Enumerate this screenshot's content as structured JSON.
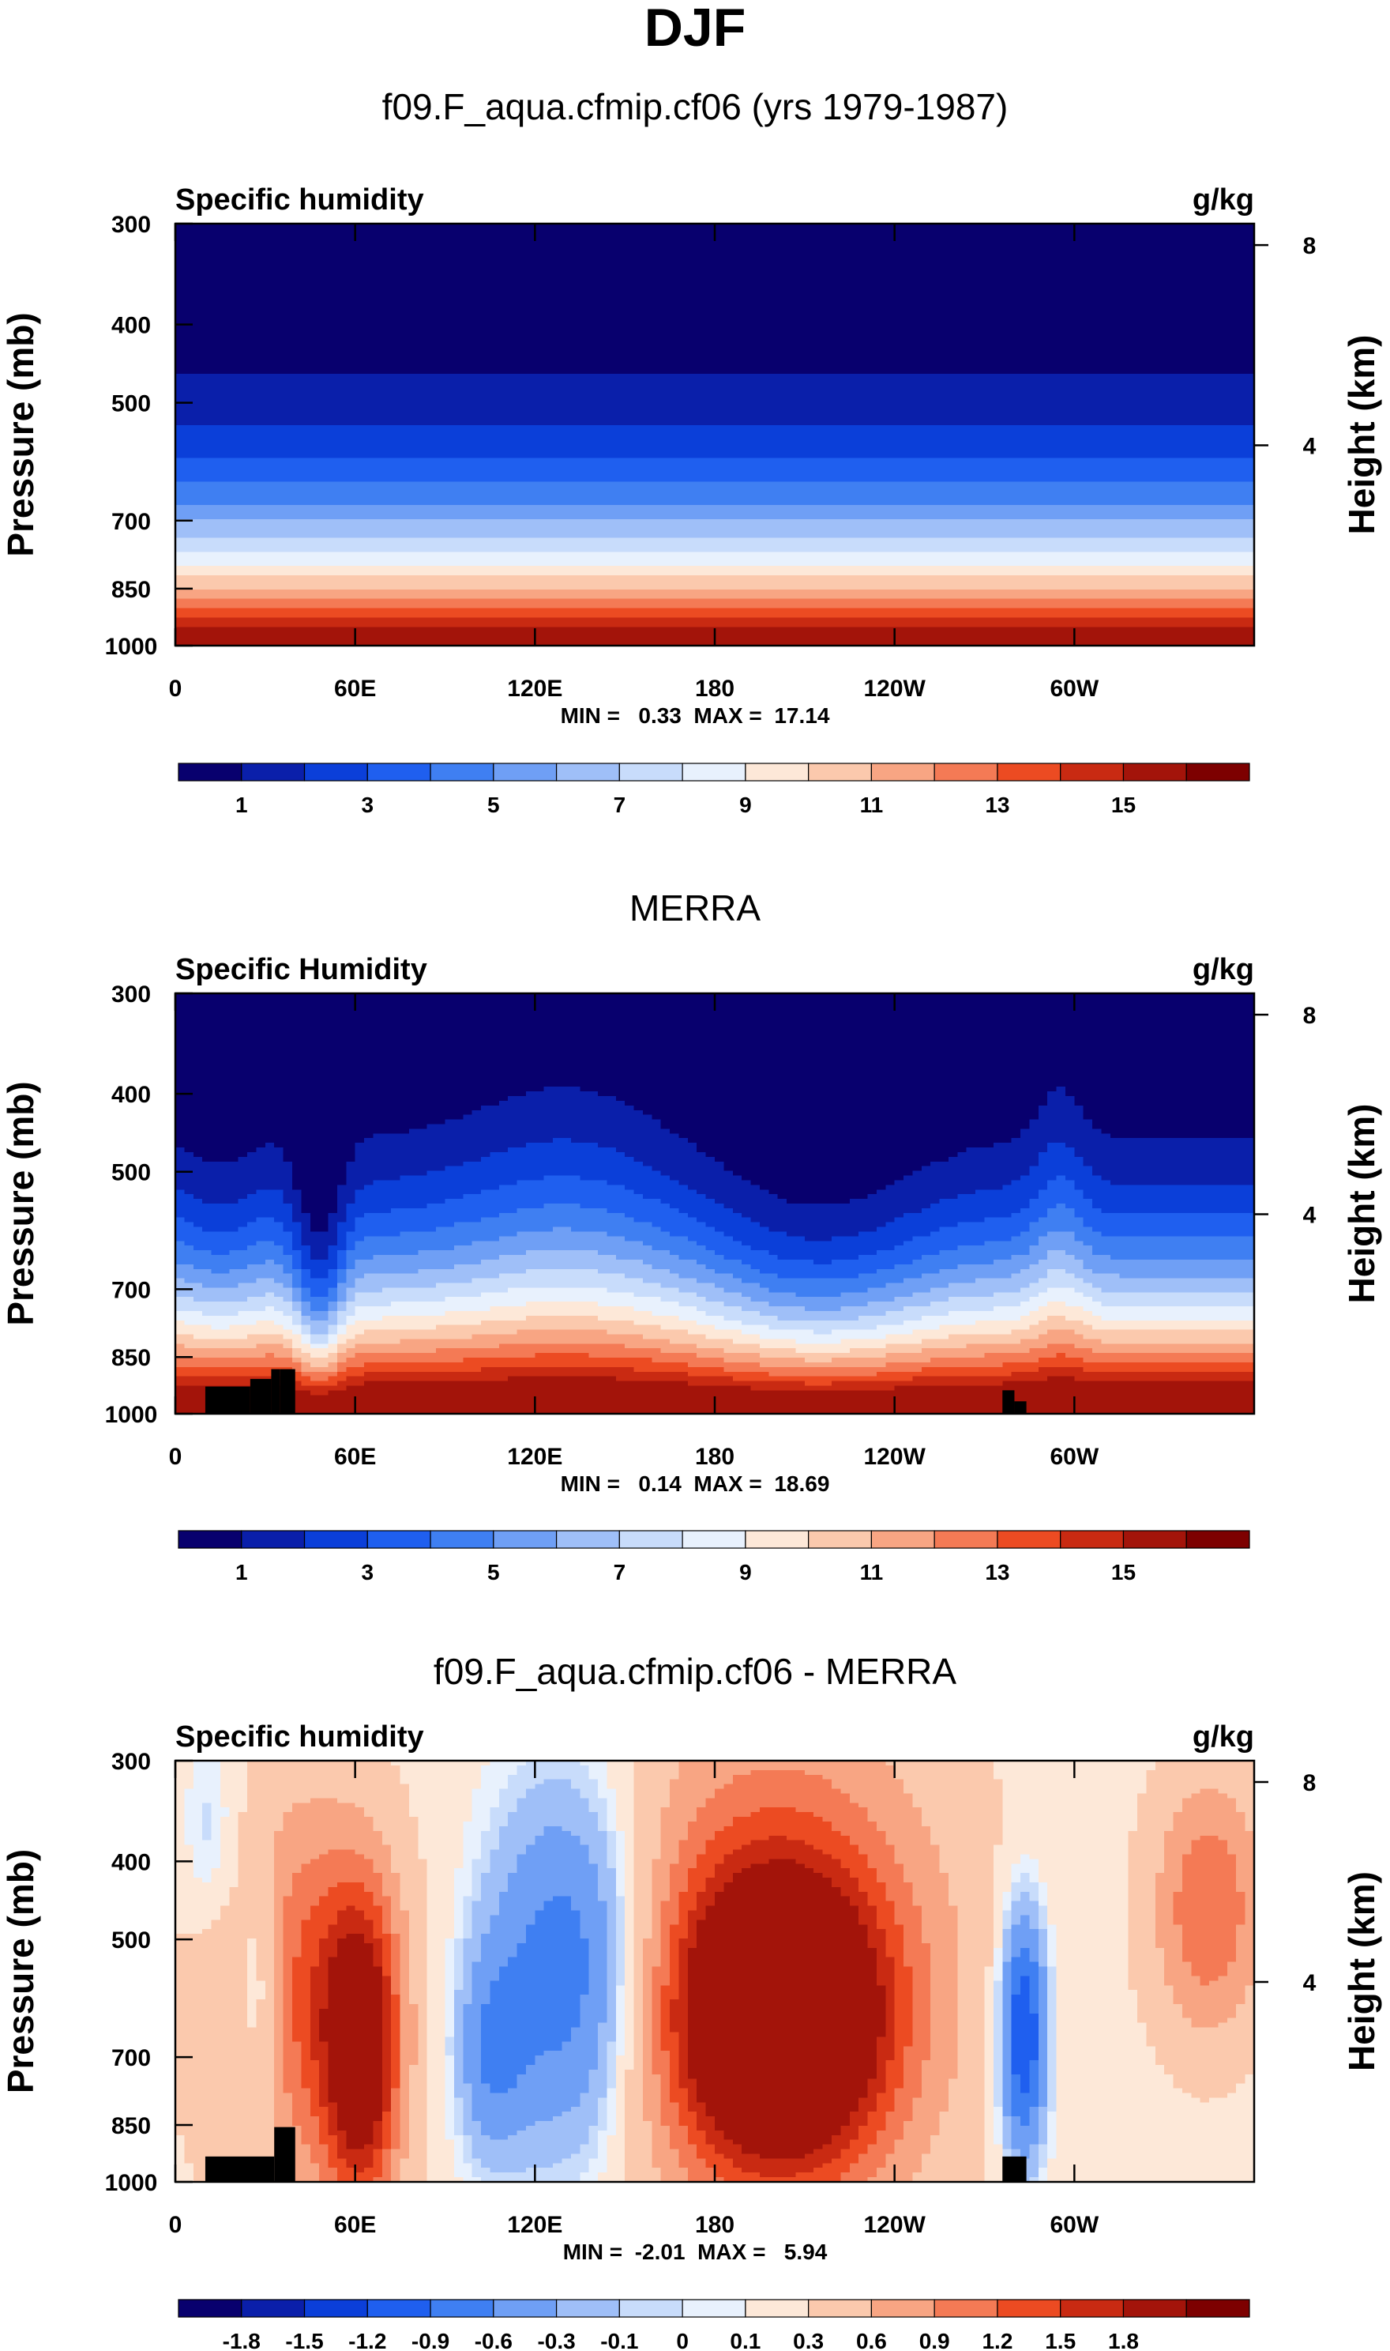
{
  "page_title": "DJF",
  "chart_data": [
    {
      "type": "heatmap",
      "title": "f09.F_aqua.cfmip.cf06 (yrs 1979-1987)",
      "variable_label": "Specific humidity",
      "units": "g/kg",
      "ylabel": "Pressure (mb)",
      "ylabel_right": "Height (km)",
      "x_ticks": [
        "0",
        "60E",
        "120E",
        "180",
        "120W",
        "60W"
      ],
      "y_ticks": [
        "300",
        "400",
        "500",
        "700",
        "850",
        "1000"
      ],
      "height_ticks": [
        "8",
        "4"
      ],
      "stats": "MIN =   0.33  MAX =  17.14",
      "min": 0.33,
      "max": 17.14,
      "colorbar_levels": [
        1,
        2,
        3,
        4,
        5,
        6,
        7,
        8,
        9,
        10,
        11,
        12,
        13,
        14,
        15
      ],
      "colorbar_labels": [
        "1",
        "3",
        "5",
        "7",
        "9",
        "11",
        "13",
        "15"
      ]
    },
    {
      "type": "heatmap",
      "title": "MERRA",
      "variable_label": "Specific Humidity",
      "units": "g/kg",
      "ylabel": "Pressure (mb)",
      "ylabel_right": "Height (km)",
      "x_ticks": [
        "0",
        "60E",
        "120E",
        "180",
        "120W",
        "60W"
      ],
      "y_ticks": [
        "300",
        "400",
        "500",
        "700",
        "850",
        "1000"
      ],
      "height_ticks": [
        "8",
        "4"
      ],
      "stats": "MIN =   0.14  MAX =  18.69",
      "min": 0.14,
      "max": 18.69,
      "colorbar_levels": [
        1,
        2,
        3,
        4,
        5,
        6,
        7,
        8,
        9,
        10,
        11,
        12,
        13,
        14,
        15
      ],
      "colorbar_labels": [
        "1",
        "3",
        "5",
        "7",
        "9",
        "11",
        "13",
        "15"
      ]
    },
    {
      "type": "heatmap",
      "title": "f09.F_aqua.cfmip.cf06 - MERRA",
      "variable_label": "Specific humidity",
      "units": "g/kg",
      "ylabel": "Pressure (mb)",
      "ylabel_right": "Height (km)",
      "x_ticks": [
        "0",
        "60E",
        "120E",
        "180",
        "120W",
        "60W"
      ],
      "y_ticks": [
        "300",
        "400",
        "500",
        "700",
        "850",
        "1000"
      ],
      "height_ticks": [
        "8",
        "4"
      ],
      "stats": "MIN =  -2.01  MAX =   5.94",
      "min": -2.01,
      "max": 5.94,
      "colorbar_levels": [
        -1.8,
        -1.5,
        -1.2,
        -0.9,
        -0.6,
        -0.3,
        -0.1,
        0,
        0.1,
        0.3,
        0.6,
        0.9,
        1.2,
        1.5,
        1.8
      ],
      "colorbar_labels": [
        "-1.8",
        "-1.5",
        "-1.2",
        "-0.9",
        "-0.6",
        "-0.3",
        "-0.1",
        "0",
        "0.1",
        "0.3",
        "0.6",
        "0.9",
        "1.2",
        "1.5",
        "1.8"
      ]
    }
  ],
  "palette": [
    "#08006e",
    "#0a1faa",
    "#0b3fd9",
    "#1f5fef",
    "#3f7ff2",
    "#6f9ff5",
    "#9fbff8",
    "#c8dcfb",
    "#e8f1fd",
    "#fde8d8",
    "#fbc9ad",
    "#f8a583",
    "#f47a55",
    "#ec4b22",
    "#c92a12",
    "#a3140a",
    "#7d0000"
  ],
  "topography_color": "#000000"
}
